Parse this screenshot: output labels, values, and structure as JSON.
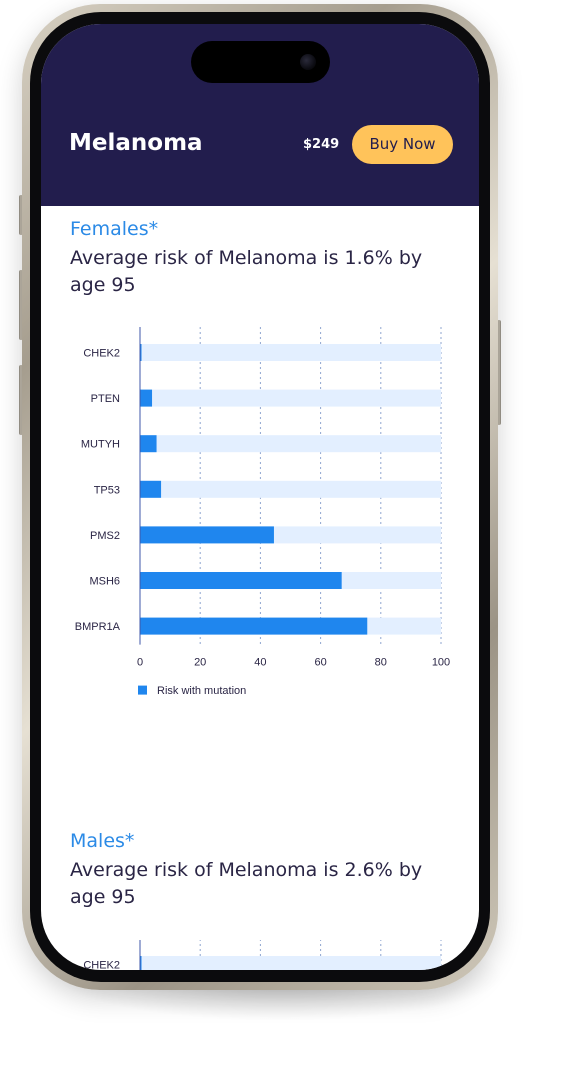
{
  "header": {
    "title": "Melanoma",
    "price": "$249",
    "buy_label": "Buy Now"
  },
  "sections": [
    {
      "label": "Females*",
      "description": "Average risk of Melanoma is 1.6% by age 95"
    },
    {
      "label": "Males*",
      "description": "Average risk of Melanoma is 2.6% by age 95"
    }
  ],
  "colors": {
    "header_bg": "#221d4d",
    "accent_blue": "#2b8ae6",
    "bar_fill": "#1f86ee",
    "bar_track": "#e3efff",
    "buy_button": "#ffc35a"
  },
  "chart_data": [
    {
      "type": "bar",
      "orientation": "horizontal",
      "categories": [
        "CHEK2",
        "PTEN",
        "MUTYH",
        "TP53",
        "PMS2",
        "MSH6",
        "BMPR1A"
      ],
      "series": [
        {
          "name": "Risk with mutation",
          "values": [
            0.5,
            4,
            5.5,
            7,
            44.5,
            67,
            75.5
          ]
        }
      ],
      "xlim": [
        0,
        100
      ],
      "xticks": [
        0,
        20,
        40,
        60,
        80,
        100
      ],
      "grid": "vertical dotted",
      "legend": "bottom-left"
    },
    {
      "type": "bar",
      "orientation": "horizontal",
      "categories": [
        "CHEK2"
      ],
      "series": [
        {
          "values": [
            0.5
          ]
        }
      ],
      "xlim": [
        0,
        100
      ],
      "grid": "vertical dotted"
    }
  ]
}
